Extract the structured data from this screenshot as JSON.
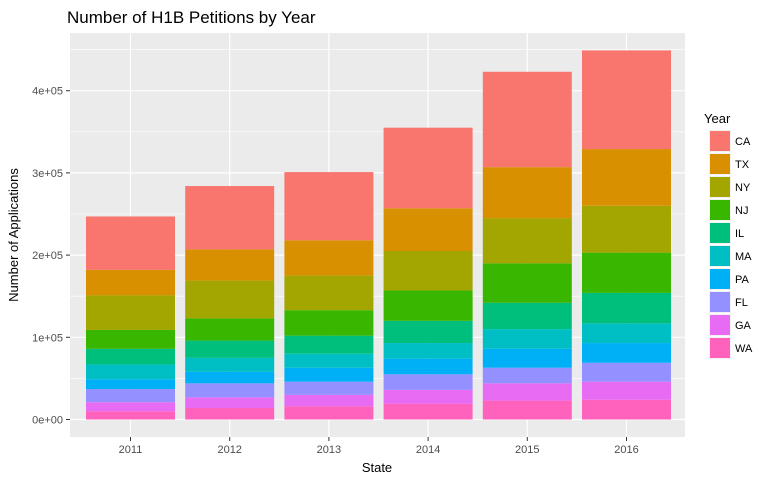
{
  "chart_data": {
    "type": "bar",
    "stacked": true,
    "title": "Number of H1B Petitions by Year",
    "xlabel": "State",
    "ylabel": "Number of Applications",
    "categories": [
      "2011",
      "2012",
      "2013",
      "2014",
      "2015",
      "2016"
    ],
    "ylim": [
      0,
      470000
    ],
    "yticks": [
      0,
      100000,
      200000,
      300000,
      400000
    ],
    "ytick_labels": [
      "0e+00",
      "1e+05",
      "2e+05",
      "3e+05",
      "4e+05"
    ],
    "grid": true,
    "legend": {
      "title": "Year",
      "position": "right"
    },
    "series": [
      {
        "name": "CA",
        "color": "#F8766D",
        "values": [
          65000,
          77000,
          83000,
          98000,
          116000,
          120000
        ]
      },
      {
        "name": "TX",
        "color": "#D89000",
        "values": [
          31000,
          38000,
          43000,
          52000,
          62000,
          69000
        ]
      },
      {
        "name": "NY",
        "color": "#A3A500",
        "values": [
          42000,
          46000,
          42000,
          48000,
          55000,
          57000
        ]
      },
      {
        "name": "NJ",
        "color": "#39B600",
        "values": [
          23000,
          27000,
          31000,
          37000,
          48000,
          49000
        ]
      },
      {
        "name": "IL",
        "color": "#00BF7D",
        "values": [
          19000,
          21000,
          22000,
          27000,
          32000,
          37000
        ]
      },
      {
        "name": "MA",
        "color": "#00BFC4",
        "values": [
          18000,
          17000,
          17000,
          19000,
          24000,
          24000
        ]
      },
      {
        "name": "PA",
        "color": "#00B0F6",
        "values": [
          12000,
          14000,
          17000,
          19000,
          23000,
          24000
        ]
      },
      {
        "name": "FL",
        "color": "#9590FF",
        "values": [
          16000,
          17000,
          16000,
          19000,
          19000,
          23000
        ]
      },
      {
        "name": "GA",
        "color": "#E76BF3",
        "values": [
          11000,
          13000,
          14000,
          17000,
          21000,
          22000
        ]
      },
      {
        "name": "WA",
        "color": "#FF62BC",
        "values": [
          10000,
          14000,
          16000,
          19000,
          23000,
          24000
        ]
      }
    ]
  }
}
